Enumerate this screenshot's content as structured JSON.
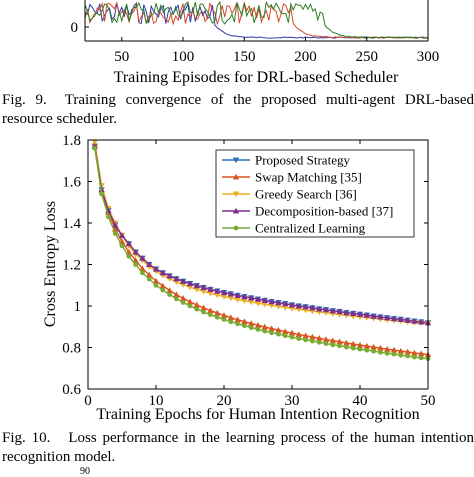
{
  "top_chart": {
    "xlabel": "Training Episodes for DRL-based Scheduler",
    "x_ticks": [
      "50",
      "100",
      "150",
      "200",
      "250",
      "300"
    ],
    "y_ticks": [
      "0"
    ],
    "series_colors": [
      "#2f3aa8",
      "#d6462b",
      "#2e7d22"
    ]
  },
  "fig9_caption": {
    "label": "Fig. 9.",
    "text": "Training convergence of the proposed multi-agent DRL-based resource scheduler."
  },
  "fig10_caption": {
    "label": "Fig. 10.",
    "text": "Loss performance in the learning process of the human intention recognition model."
  },
  "bottom_fragment": {
    "text": "90"
  },
  "chart_data": [
    {
      "type": "line",
      "title": "",
      "xlabel": "Training Epochs for Human Intention Recognition",
      "ylabel": "Cross Entropy Loss",
      "xlim": [
        0,
        50
      ],
      "ylim": [
        0.6,
        1.8
      ],
      "x_ticks": [
        "0",
        "10",
        "20",
        "30",
        "40",
        "50"
      ],
      "y_ticks": [
        "0.6",
        "0.8",
        "1",
        "1.2",
        "1.4",
        "1.6",
        "1.8"
      ],
      "grid": false,
      "legend_position": "top-right",
      "x": [
        1,
        2,
        3,
        4,
        5,
        6,
        7,
        8,
        9,
        10,
        11,
        12,
        13,
        14,
        15,
        16,
        17,
        18,
        19,
        20,
        21,
        22,
        23,
        24,
        25,
        26,
        27,
        28,
        29,
        30,
        31,
        32,
        33,
        34,
        35,
        36,
        37,
        38,
        39,
        40,
        41,
        42,
        43,
        44,
        45,
        46,
        47,
        48,
        49,
        50
      ],
      "series": [
        {
          "name": "Proposed Strategy",
          "color": "#2a6fb8",
          "marker": "triangle-down",
          "values": [
            1.77,
            1.56,
            1.46,
            1.39,
            1.34,
            1.3,
            1.26,
            1.23,
            1.2,
            1.178,
            1.16,
            1.145,
            1.131,
            1.119,
            1.108,
            1.098,
            1.089,
            1.08,
            1.072,
            1.065,
            1.058,
            1.051,
            1.045,
            1.039,
            1.033,
            1.027,
            1.021,
            1.016,
            1.011,
            1.005,
            1.0,
            0.996,
            0.991,
            0.986,
            0.982,
            0.977,
            0.973,
            0.968,
            0.964,
            0.96,
            0.956,
            0.951,
            0.947,
            0.943,
            0.939,
            0.935,
            0.931,
            0.927,
            0.923,
            0.919
          ]
        },
        {
          "name": "Swap Matching [35]",
          "color": "#d9541e",
          "marker": "triangle-up",
          "values": [
            1.78,
            1.56,
            1.45,
            1.37,
            1.31,
            1.26,
            1.22,
            1.18,
            1.15,
            1.12,
            1.097,
            1.075,
            1.055,
            1.037,
            1.02,
            1.005,
            0.991,
            0.978,
            0.966,
            0.955,
            0.944,
            0.934,
            0.925,
            0.916,
            0.907,
            0.899,
            0.891,
            0.884,
            0.877,
            0.87,
            0.863,
            0.857,
            0.851,
            0.845,
            0.839,
            0.833,
            0.828,
            0.822,
            0.817,
            0.812,
            0.807,
            0.802,
            0.797,
            0.792,
            0.788,
            0.783,
            0.779,
            0.774,
            0.77,
            0.766
          ]
        },
        {
          "name": "Greedy Search [36]",
          "color": "#edb120",
          "marker": "triangle-down",
          "values": [
            1.79,
            1.58,
            1.47,
            1.4,
            1.34,
            1.29,
            1.25,
            1.22,
            1.19,
            1.168,
            1.148,
            1.131,
            1.116,
            1.103,
            1.091,
            1.08,
            1.07,
            1.061,
            1.053,
            1.045,
            1.038,
            1.031,
            1.025,
            1.019,
            1.013,
            1.008,
            1.003,
            0.998,
            0.993,
            0.988,
            0.984,
            0.979,
            0.975,
            0.971,
            0.967,
            0.963,
            0.959,
            0.955,
            0.951,
            0.948,
            0.944,
            0.94,
            0.937,
            0.933,
            0.93,
            0.927,
            0.923,
            0.92,
            0.917,
            0.914
          ]
        },
        {
          "name": "Decomposition-based [37]",
          "color": "#7e2f8e",
          "marker": "triangle-up",
          "values": [
            1.77,
            1.56,
            1.46,
            1.39,
            1.34,
            1.3,
            1.26,
            1.23,
            1.2,
            1.178,
            1.16,
            1.145,
            1.131,
            1.119,
            1.108,
            1.098,
            1.089,
            1.08,
            1.072,
            1.065,
            1.058,
            1.051,
            1.045,
            1.039,
            1.033,
            1.027,
            1.021,
            1.016,
            1.011,
            1.005,
            1.0,
            0.996,
            0.991,
            0.986,
            0.982,
            0.977,
            0.973,
            0.968,
            0.964,
            0.96,
            0.956,
            0.951,
            0.947,
            0.943,
            0.939,
            0.935,
            0.931,
            0.927,
            0.923,
            0.919
          ]
        },
        {
          "name": "Centralized Learning",
          "color": "#77ac30",
          "marker": "circle",
          "values": [
            1.76,
            1.54,
            1.43,
            1.35,
            1.29,
            1.24,
            1.2,
            1.16,
            1.13,
            1.1,
            1.077,
            1.055,
            1.035,
            1.017,
            1.0,
            0.985,
            0.971,
            0.958,
            0.946,
            0.935,
            0.924,
            0.914,
            0.905,
            0.896,
            0.887,
            0.879,
            0.871,
            0.864,
            0.857,
            0.85,
            0.843,
            0.837,
            0.831,
            0.825,
            0.819,
            0.813,
            0.808,
            0.802,
            0.797,
            0.792,
            0.787,
            0.782,
            0.777,
            0.772,
            0.768,
            0.763,
            0.759,
            0.754,
            0.75,
            0.746
          ]
        }
      ]
    }
  ]
}
